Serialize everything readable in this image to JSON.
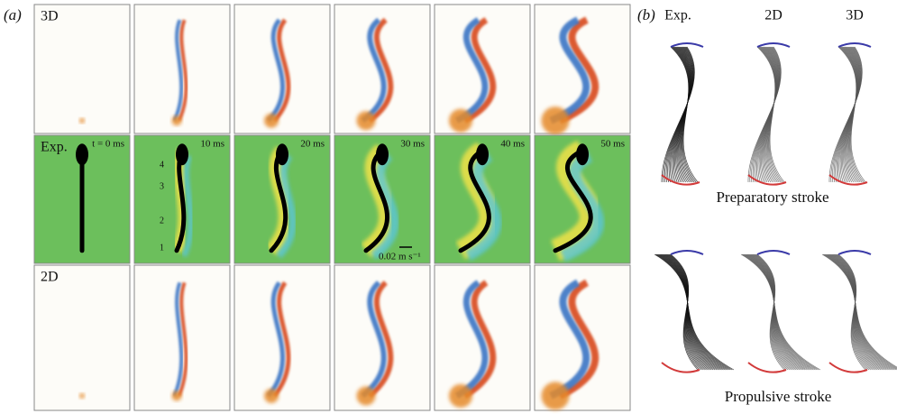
{
  "panel_a": {
    "label": "(a)",
    "rows": [
      "3D",
      "Exp.",
      "2D"
    ],
    "times": [
      "t = 0 ms",
      "10 ms",
      "20 ms",
      "30 ms",
      "40 ms",
      "50 ms"
    ],
    "points": [
      "4",
      "3",
      "2",
      "1"
    ],
    "scale": "0.02 m s⁻¹"
  },
  "panel_b": {
    "label": "(b)",
    "columns": [
      "Exp.",
      "2D",
      "3D"
    ],
    "strokes": [
      "Preparatory stroke",
      "Propulsive stroke"
    ]
  }
}
